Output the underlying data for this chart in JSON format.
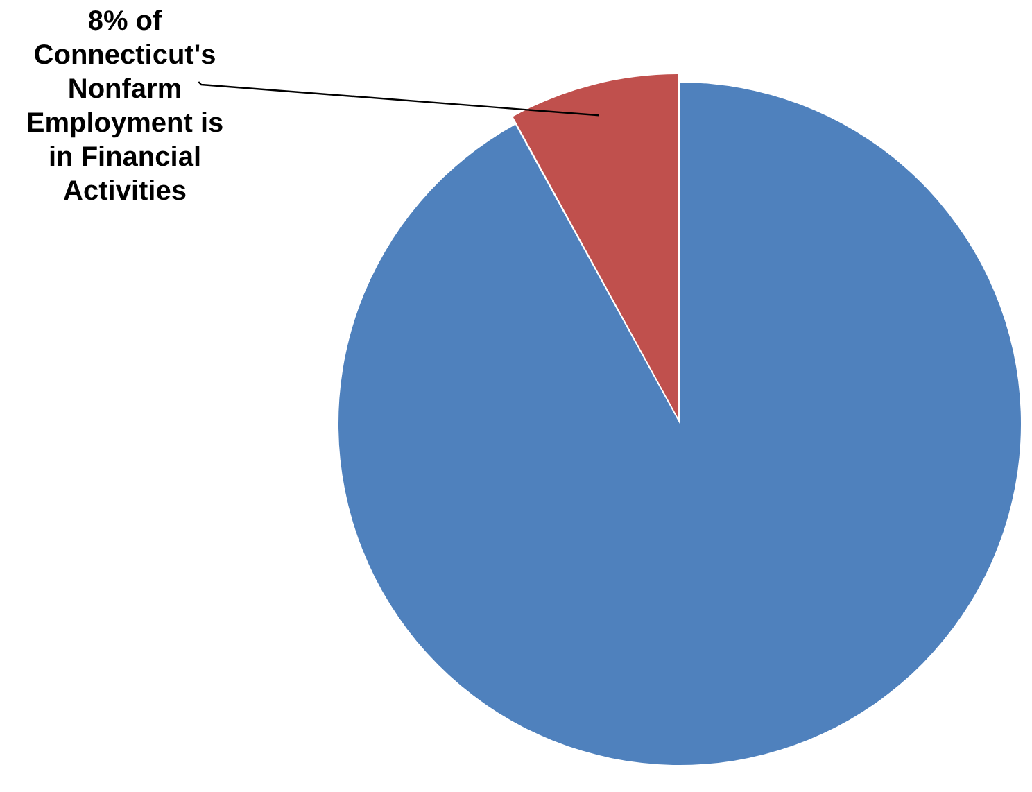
{
  "chart_data": {
    "type": "pie",
    "categories": [
      null,
      "8% of Connecticut's Nonfarm Employment is in Financial Activities"
    ],
    "values": [
      92,
      8
    ],
    "colors": [
      "#4f81bd",
      "#c0504d"
    ],
    "legend": false
  }
}
